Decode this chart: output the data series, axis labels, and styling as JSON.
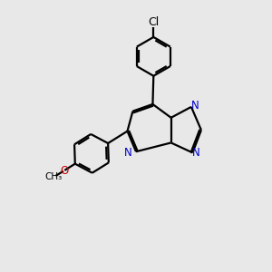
{
  "background_color": "#e8e8e8",
  "bond_color": "#000000",
  "nitrogen_color": "#0000cc",
  "oxygen_color": "#cc0000",
  "line_width": 1.6,
  "font_size": 8.5,
  "fig_width": 3.0,
  "fig_height": 3.0,
  "dpi": 100,
  "xlim": [
    0,
    10
  ],
  "ylim": [
    0,
    10
  ]
}
